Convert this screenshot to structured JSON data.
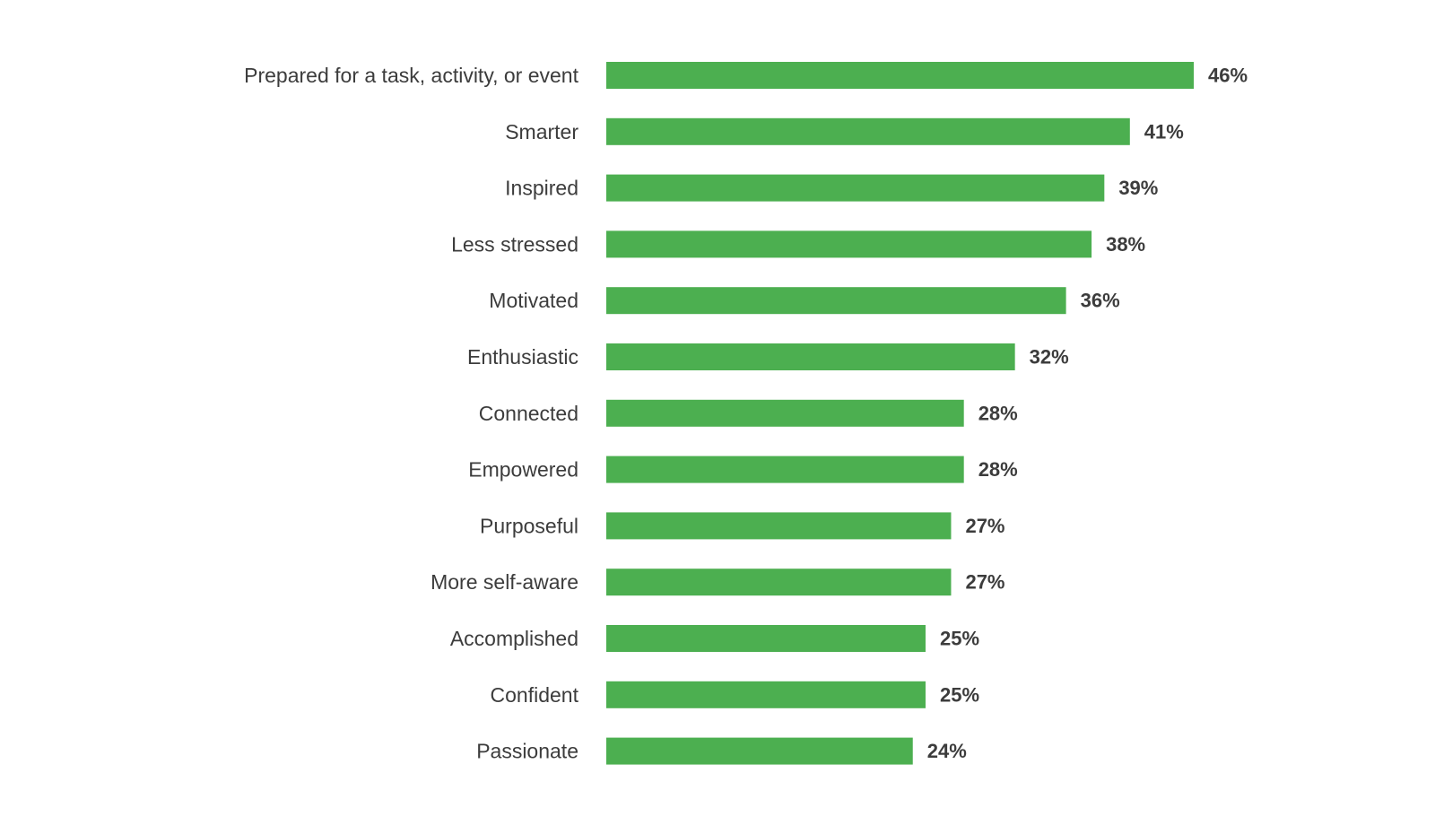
{
  "chart_data": {
    "type": "bar",
    "orientation": "horizontal",
    "title": "",
    "xlabel": "",
    "ylabel": "",
    "grid": false,
    "xlim": [
      0,
      46
    ],
    "bar_color": "#4caf50",
    "label_color": "#3c3c3c",
    "categories": [
      "Prepared for a task, activity, or event",
      "Smarter",
      "Inspired",
      "Less stressed",
      "Motivated",
      "Enthusiastic",
      "Connected",
      "Empowered",
      "Purposeful",
      "More self-aware",
      "Accomplished",
      "Confident",
      "Passionate"
    ],
    "values": [
      46,
      41,
      39,
      38,
      36,
      32,
      28,
      28,
      27,
      27,
      25,
      25,
      24
    ],
    "value_labels": [
      "46%",
      "41%",
      "39%",
      "38%",
      "36%",
      "32%",
      "28%",
      "28%",
      "27%",
      "27%",
      "25%",
      "25%",
      "24%"
    ]
  }
}
